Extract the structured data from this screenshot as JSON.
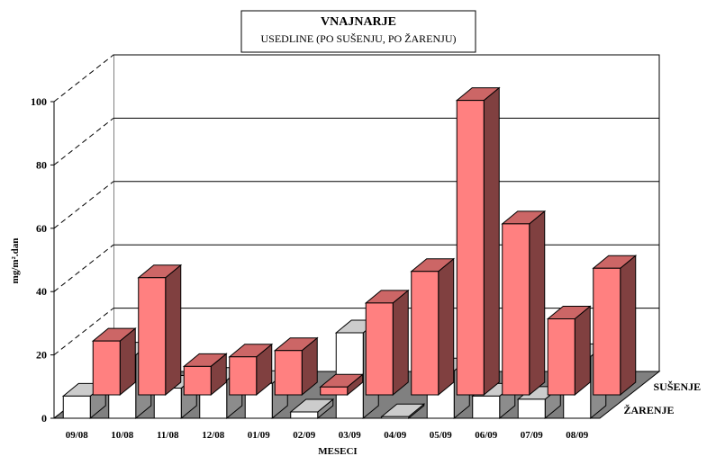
{
  "chart_data": {
    "type": "bar3d",
    "title": "VNAJNARJE",
    "subtitle": "USEDLINE (PO SUŠENJU, PO ŽARENJU)",
    "x_label": "MESECI",
    "y_label": "mg/m².dan",
    "categories": [
      "09/08",
      "10/08",
      "11/08",
      "12/08",
      "01/09",
      "02/09",
      "03/09",
      "04/09",
      "05/09",
      "06/09",
      "07/09",
      "08/09"
    ],
    "series": [
      {
        "name": "SUŠENJE",
        "color": "#ff8080",
        "values": [
          17,
          37,
          9,
          12,
          14,
          2.5,
          29,
          39,
          93,
          54,
          24,
          40
        ]
      },
      {
        "name": "ŽARENJE",
        "color": "#ffffff",
        "values": [
          7,
          20,
          9.5,
          12,
          11,
          2,
          27,
          0.5,
          15,
          7,
          6,
          19.5
        ]
      }
    ],
    "ylim": [
      0,
      100
    ],
    "yticks": [
      0,
      20,
      40,
      60,
      80,
      100
    ],
    "grid": true
  }
}
